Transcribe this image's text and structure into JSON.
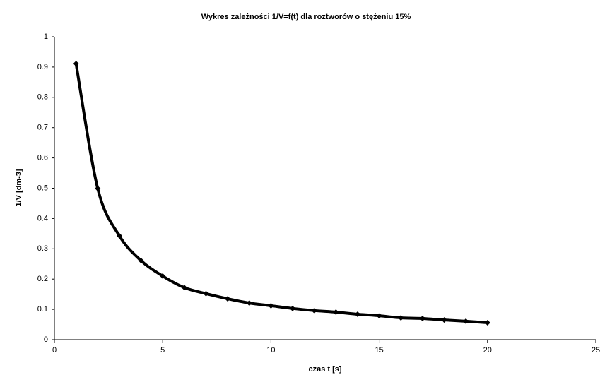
{
  "chart_data": {
    "type": "scatter",
    "title": "Wykres zależności 1/V=f(t) dla roztworów o stężeniu 15%",
    "x_label": "czas t [s]",
    "y_label": "1/V [dm-3]",
    "x": [
      1,
      2,
      3,
      4,
      5,
      6,
      7,
      8,
      9,
      10,
      11,
      12,
      13,
      14,
      15,
      16,
      17,
      18,
      19,
      20
    ],
    "values": [
      0.911,
      0.499,
      0.343,
      0.261,
      0.21,
      0.172,
      0.152,
      0.135,
      0.121,
      0.112,
      0.103,
      0.096,
      0.091,
      0.084,
      0.079,
      0.072,
      0.07,
      0.065,
      0.061,
      0.056
    ],
    "color": "#000000",
    "line": true,
    "grid": false,
    "xlim": [
      0,
      25
    ],
    "xticks": [
      0,
      5,
      10,
      15,
      20,
      25
    ],
    "ylim": [
      0,
      1
    ],
    "yticks": [
      0,
      0.1,
      0.2,
      0.3,
      0.4,
      0.5,
      0.6,
      0.7,
      0.8,
      0.9,
      1
    ]
  }
}
